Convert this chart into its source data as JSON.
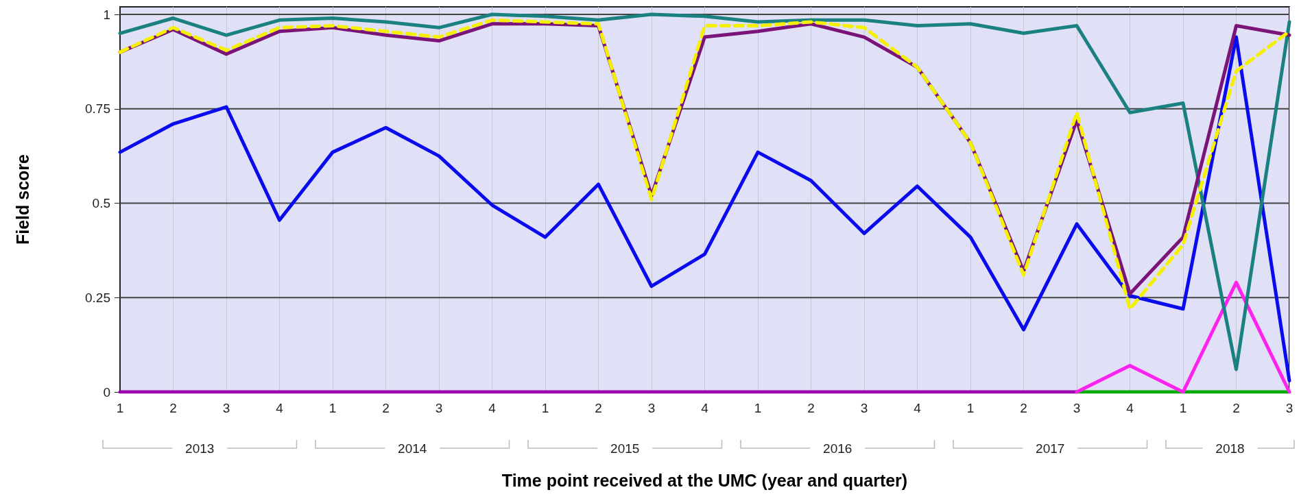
{
  "chart_data": {
    "type": "line",
    "xlabel": "Time point received at the UMC (year and quarter)",
    "ylabel": "Field score",
    "categories": [
      "1",
      "2",
      "3",
      "4",
      "1",
      "2",
      "3",
      "4",
      "1",
      "2",
      "3",
      "4",
      "1",
      "2",
      "3",
      "4",
      "1",
      "2",
      "3",
      "4",
      "1",
      "2",
      "3"
    ],
    "annotations": [
      "2013",
      "2014",
      "2015",
      "2016",
      "2017",
      "2018"
    ],
    "series": [
      {
        "color": "#9900aa",
        "values": [
          0,
          0,
          0,
          0,
          0,
          0,
          0,
          0,
          0,
          0,
          0,
          0,
          0,
          0,
          0,
          0,
          0,
          0,
          0,
          null,
          null,
          null,
          null
        ]
      },
      {
        "color": "#00aa00",
        "values": [
          null,
          null,
          null,
          null,
          null,
          null,
          null,
          null,
          null,
          null,
          null,
          null,
          null,
          null,
          null,
          null,
          null,
          null,
          0,
          0,
          0,
          0,
          0
        ]
      },
      {
        "color": "#ff22ee",
        "values": [
          null,
          null,
          null,
          null,
          null,
          null,
          null,
          null,
          null,
          null,
          null,
          null,
          null,
          null,
          null,
          null,
          null,
          null,
          0,
          0.07,
          0,
          0.29,
          0
        ]
      },
      {
        "color": "#0a0aee",
        "values": [
          0.635,
          0.71,
          0.755,
          0.455,
          0.635,
          0.7,
          0.625,
          0.495,
          0.41,
          0.55,
          0.28,
          0.365,
          0.635,
          0.56,
          0.42,
          0.545,
          0.41,
          0.165,
          0.445,
          0.255,
          0.22,
          0.94,
          0.03
        ]
      },
      {
        "color": "#1a8080",
        "values": [
          0.95,
          0.99,
          0.945,
          0.985,
          0.99,
          0.98,
          0.965,
          1,
          0.995,
          0.985,
          1,
          0.995,
          0.98,
          0.985,
          0.985,
          0.97,
          0.975,
          0.95,
          0.97,
          0.74,
          0.765,
          0.06,
          0.98
        ]
      },
      {
        "color": "#7a1478",
        "values": [
          0.9,
          0.96,
          0.895,
          0.955,
          0.965,
          0.945,
          0.93,
          0.975,
          0.975,
          0.97,
          0.52,
          0.94,
          0.955,
          0.975,
          0.94,
          0.86,
          0.66,
          0.32,
          0.72,
          0.26,
          0.41,
          0.97,
          0.945
        ]
      },
      {
        "color": "#f5f000",
        "line_style": "dashed",
        "values": [
          0.9,
          0.965,
          0.905,
          0.965,
          0.97,
          0.955,
          0.94,
          0.985,
          0.98,
          0.975,
          0.51,
          0.97,
          0.97,
          0.98,
          0.965,
          0.86,
          0.66,
          0.31,
          0.74,
          0.22,
          0.39,
          0.85,
          0.955
        ]
      }
    ],
    "ylim": [
      0,
      1.02
    ],
    "yticks": [
      0,
      0.25,
      0.5,
      0.75,
      1
    ],
    "grid": true,
    "marker": "none",
    "line_style": "solid"
  }
}
